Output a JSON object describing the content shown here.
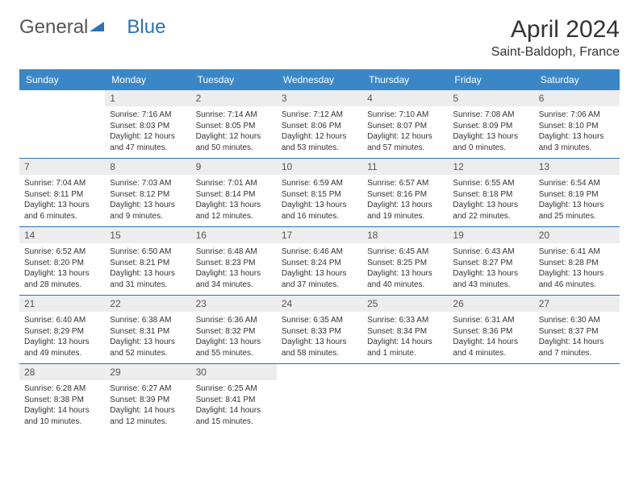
{
  "logo": {
    "text1": "General",
    "text2": "Blue"
  },
  "title": "April 2024",
  "location": "Saint-Baldoph, France",
  "colors": {
    "header_bg": "#3a87c8",
    "header_text": "#ffffff",
    "daynum_bg": "#ededed",
    "border": "#2a71b8",
    "logo_blue": "#2a71b8"
  },
  "weekdays": [
    "Sunday",
    "Monday",
    "Tuesday",
    "Wednesday",
    "Thursday",
    "Friday",
    "Saturday"
  ],
  "weeks": [
    [
      null,
      {
        "n": "1",
        "sr": "7:16 AM",
        "ss": "8:03 PM",
        "dl": "12 hours and 47 minutes."
      },
      {
        "n": "2",
        "sr": "7:14 AM",
        "ss": "8:05 PM",
        "dl": "12 hours and 50 minutes."
      },
      {
        "n": "3",
        "sr": "7:12 AM",
        "ss": "8:06 PM",
        "dl": "12 hours and 53 minutes."
      },
      {
        "n": "4",
        "sr": "7:10 AM",
        "ss": "8:07 PM",
        "dl": "12 hours and 57 minutes."
      },
      {
        "n": "5",
        "sr": "7:08 AM",
        "ss": "8:09 PM",
        "dl": "13 hours and 0 minutes."
      },
      {
        "n": "6",
        "sr": "7:06 AM",
        "ss": "8:10 PM",
        "dl": "13 hours and 3 minutes."
      }
    ],
    [
      {
        "n": "7",
        "sr": "7:04 AM",
        "ss": "8:11 PM",
        "dl": "13 hours and 6 minutes."
      },
      {
        "n": "8",
        "sr": "7:03 AM",
        "ss": "8:12 PM",
        "dl": "13 hours and 9 minutes."
      },
      {
        "n": "9",
        "sr": "7:01 AM",
        "ss": "8:14 PM",
        "dl": "13 hours and 12 minutes."
      },
      {
        "n": "10",
        "sr": "6:59 AM",
        "ss": "8:15 PM",
        "dl": "13 hours and 16 minutes."
      },
      {
        "n": "11",
        "sr": "6:57 AM",
        "ss": "8:16 PM",
        "dl": "13 hours and 19 minutes."
      },
      {
        "n": "12",
        "sr": "6:55 AM",
        "ss": "8:18 PM",
        "dl": "13 hours and 22 minutes."
      },
      {
        "n": "13",
        "sr": "6:54 AM",
        "ss": "8:19 PM",
        "dl": "13 hours and 25 minutes."
      }
    ],
    [
      {
        "n": "14",
        "sr": "6:52 AM",
        "ss": "8:20 PM",
        "dl": "13 hours and 28 minutes."
      },
      {
        "n": "15",
        "sr": "6:50 AM",
        "ss": "8:21 PM",
        "dl": "13 hours and 31 minutes."
      },
      {
        "n": "16",
        "sr": "6:48 AM",
        "ss": "8:23 PM",
        "dl": "13 hours and 34 minutes."
      },
      {
        "n": "17",
        "sr": "6:46 AM",
        "ss": "8:24 PM",
        "dl": "13 hours and 37 minutes."
      },
      {
        "n": "18",
        "sr": "6:45 AM",
        "ss": "8:25 PM",
        "dl": "13 hours and 40 minutes."
      },
      {
        "n": "19",
        "sr": "6:43 AM",
        "ss": "8:27 PM",
        "dl": "13 hours and 43 minutes."
      },
      {
        "n": "20",
        "sr": "6:41 AM",
        "ss": "8:28 PM",
        "dl": "13 hours and 46 minutes."
      }
    ],
    [
      {
        "n": "21",
        "sr": "6:40 AM",
        "ss": "8:29 PM",
        "dl": "13 hours and 49 minutes."
      },
      {
        "n": "22",
        "sr": "6:38 AM",
        "ss": "8:31 PM",
        "dl": "13 hours and 52 minutes."
      },
      {
        "n": "23",
        "sr": "6:36 AM",
        "ss": "8:32 PM",
        "dl": "13 hours and 55 minutes."
      },
      {
        "n": "24",
        "sr": "6:35 AM",
        "ss": "8:33 PM",
        "dl": "13 hours and 58 minutes."
      },
      {
        "n": "25",
        "sr": "6:33 AM",
        "ss": "8:34 PM",
        "dl": "14 hours and 1 minute."
      },
      {
        "n": "26",
        "sr": "6:31 AM",
        "ss": "8:36 PM",
        "dl": "14 hours and 4 minutes."
      },
      {
        "n": "27",
        "sr": "6:30 AM",
        "ss": "8:37 PM",
        "dl": "14 hours and 7 minutes."
      }
    ],
    [
      {
        "n": "28",
        "sr": "6:28 AM",
        "ss": "8:38 PM",
        "dl": "14 hours and 10 minutes."
      },
      {
        "n": "29",
        "sr": "6:27 AM",
        "ss": "8:39 PM",
        "dl": "14 hours and 12 minutes."
      },
      {
        "n": "30",
        "sr": "6:25 AM",
        "ss": "8:41 PM",
        "dl": "14 hours and 15 minutes."
      },
      null,
      null,
      null,
      null
    ]
  ],
  "labels": {
    "sunrise": "Sunrise: ",
    "sunset": "Sunset: ",
    "daylight": "Daylight: "
  }
}
